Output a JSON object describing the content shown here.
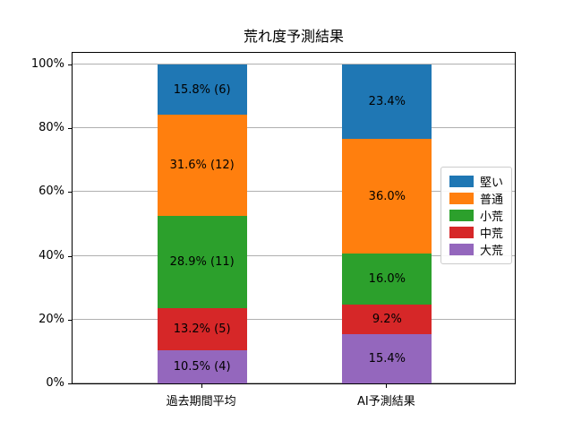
{
  "chart_data": {
    "type": "bar",
    "stacked": true,
    "title": "荒れ度予測結果",
    "xlabel": "",
    "ylabel": "",
    "categories": [
      "過去期間平均",
      "AI予測結果"
    ],
    "series": [
      {
        "name": "堅い",
        "color": "#1f77b4",
        "values": [
          15.8,
          23.4
        ],
        "labels": [
          "15.8% (6)",
          "23.4%"
        ]
      },
      {
        "name": "普通",
        "color": "#ff7f0e",
        "values": [
          31.6,
          36.0
        ],
        "labels": [
          "31.6% (12)",
          "36.0%"
        ]
      },
      {
        "name": "小荒",
        "color": "#2ca02c",
        "values": [
          28.9,
          16.0
        ],
        "labels": [
          "28.9% (11)",
          "16.0%"
        ]
      },
      {
        "name": "中荒",
        "color": "#d62728",
        "values": [
          13.2,
          9.2
        ],
        "labels": [
          "13.2% (5)",
          "9.2%"
        ]
      },
      {
        "name": "大荒",
        "color": "#9467bd",
        "values": [
          10.5,
          15.4
        ],
        "labels": [
          "10.5% (4)",
          "15.4%"
        ]
      }
    ],
    "stack_order": "first series on top, last series at bottom",
    "yticks": [
      "0%",
      "20%",
      "40%",
      "60%",
      "80%",
      "100%"
    ],
    "ytick_values": [
      0,
      20,
      40,
      60,
      80,
      100
    ],
    "ylim": [
      0,
      104.2
    ],
    "grid": "horizontal-y",
    "grid_color": "#b0b0b0",
    "legend_position": "center right"
  }
}
